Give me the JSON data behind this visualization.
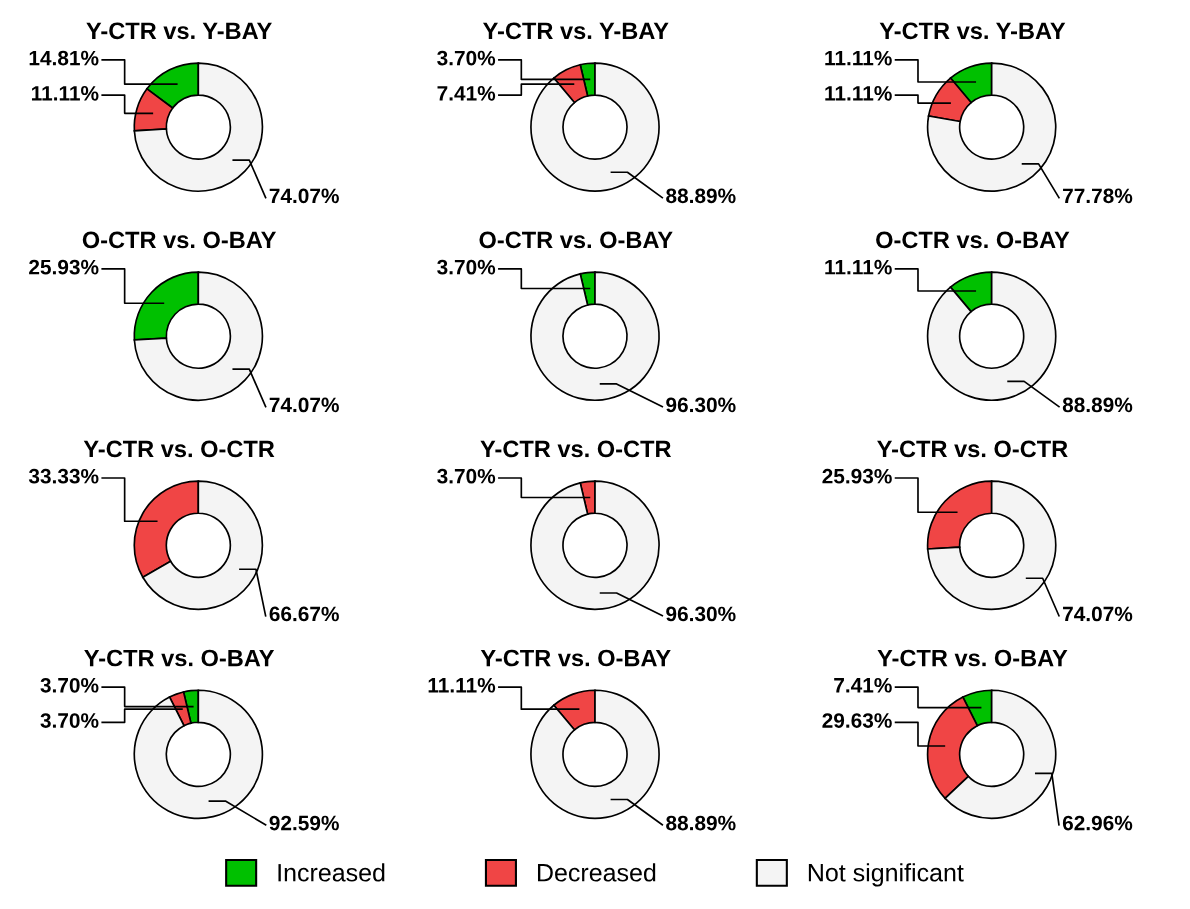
{
  "chart_data": [
    {
      "type": "donut",
      "title": "Y-CTR vs. Y-BAY",
      "categories": [
        "Increased",
        "Decreased",
        "Not significant"
      ],
      "values": [
        14.81,
        11.11,
        74.07
      ],
      "colors": [
        "#00c000",
        "#f04545",
        "#f4f4f4"
      ],
      "value_labels": [
        "14.81%",
        "11.11%",
        "74.07%"
      ],
      "legend": "bottom"
    },
    {
      "type": "donut",
      "title": "Y-CTR vs. Y-BAY",
      "categories": [
        null,
        null,
        null
      ],
      "values": [
        3.7,
        7.41,
        88.89
      ],
      "colors": [
        "#00c000",
        "#f04545",
        "#f4f4f4"
      ],
      "value_labels": [
        "3.70%",
        "7.41%",
        "88.89%"
      ]
    },
    {
      "type": "donut",
      "title": "Y-CTR vs. Y-BAY",
      "categories": [
        null,
        null,
        null
      ],
      "values": [
        11.11,
        11.11,
        77.78
      ],
      "colors": [
        "#00c000",
        "#f04545",
        "#f4f4f4"
      ],
      "value_labels": [
        "11.11%",
        "11.11%",
        "77.78%"
      ]
    },
    {
      "type": "donut",
      "title": "O-CTR vs. O-BAY",
      "categories": [
        null,
        null,
        null
      ],
      "values": [
        25.93,
        0,
        74.07
      ],
      "colors": [
        "#00c000",
        "#f04545",
        "#f4f4f4"
      ],
      "value_labels": [
        "25.93%",
        null,
        "74.07%"
      ]
    },
    {
      "type": "donut",
      "title": "O-CTR vs. O-BAY",
      "categories": [
        null,
        null,
        null
      ],
      "values": [
        3.7,
        0,
        96.3
      ],
      "colors": [
        "#00c000",
        "#f04545",
        "#f4f4f4"
      ],
      "value_labels": [
        "3.70%",
        null,
        "96.30%"
      ]
    },
    {
      "type": "donut",
      "title": "O-CTR vs. O-BAY",
      "categories": [
        null,
        null,
        null
      ],
      "values": [
        11.11,
        0,
        88.89
      ],
      "colors": [
        "#00c000",
        "#f04545",
        "#f4f4f4"
      ],
      "value_labels": [
        "11.11%",
        null,
        "88.89%"
      ]
    },
    {
      "type": "donut",
      "title": "Y-CTR vs. O-CTR",
      "categories": [
        null,
        null,
        null
      ],
      "values": [
        0,
        33.33,
        66.67
      ],
      "colors": [
        "#00c000",
        "#f04545",
        "#f4f4f4"
      ],
      "value_labels": [
        null,
        "33.33%",
        "66.67%"
      ]
    },
    {
      "type": "donut",
      "title": "Y-CTR vs. O-CTR",
      "categories": [
        null,
        null,
        null
      ],
      "values": [
        0,
        3.7,
        96.3
      ],
      "colors": [
        "#00c000",
        "#f04545",
        "#f4f4f4"
      ],
      "value_labels": [
        null,
        "3.70%",
        "96.30%"
      ]
    },
    {
      "type": "donut",
      "title": "Y-CTR vs. O-CTR",
      "categories": [
        null,
        null,
        null
      ],
      "values": [
        0,
        25.93,
        74.07
      ],
      "colors": [
        "#00c000",
        "#f04545",
        "#f4f4f4"
      ],
      "value_labels": [
        null,
        "25.93%",
        "74.07%"
      ]
    },
    {
      "type": "donut",
      "title": "Y-CTR vs. O-BAY",
      "categories": [
        null,
        null,
        null
      ],
      "values": [
        3.7,
        3.7,
        92.59
      ],
      "colors": [
        "#00c000",
        "#f04545",
        "#f4f4f4"
      ],
      "value_labels": [
        "3.70%",
        "3.70%",
        "92.59%"
      ]
    },
    {
      "type": "donut",
      "title": "Y-CTR vs. O-BAY",
      "categories": [
        null,
        null,
        null
      ],
      "values": [
        0,
        11.11,
        88.89
      ],
      "colors": [
        "#00c000",
        "#f04545",
        "#f4f4f4"
      ],
      "value_labels": [
        null,
        "11.11%",
        "88.89%"
      ]
    },
    {
      "type": "donut",
      "title": "Y-CTR vs. O-BAY",
      "categories": [
        null,
        null,
        null
      ],
      "values": [
        7.41,
        29.63,
        62.96
      ],
      "colors": [
        "#00c000",
        "#f04545",
        "#f4f4f4"
      ],
      "value_labels": [
        "7.41%",
        "29.63%",
        "62.96%"
      ]
    }
  ]
}
